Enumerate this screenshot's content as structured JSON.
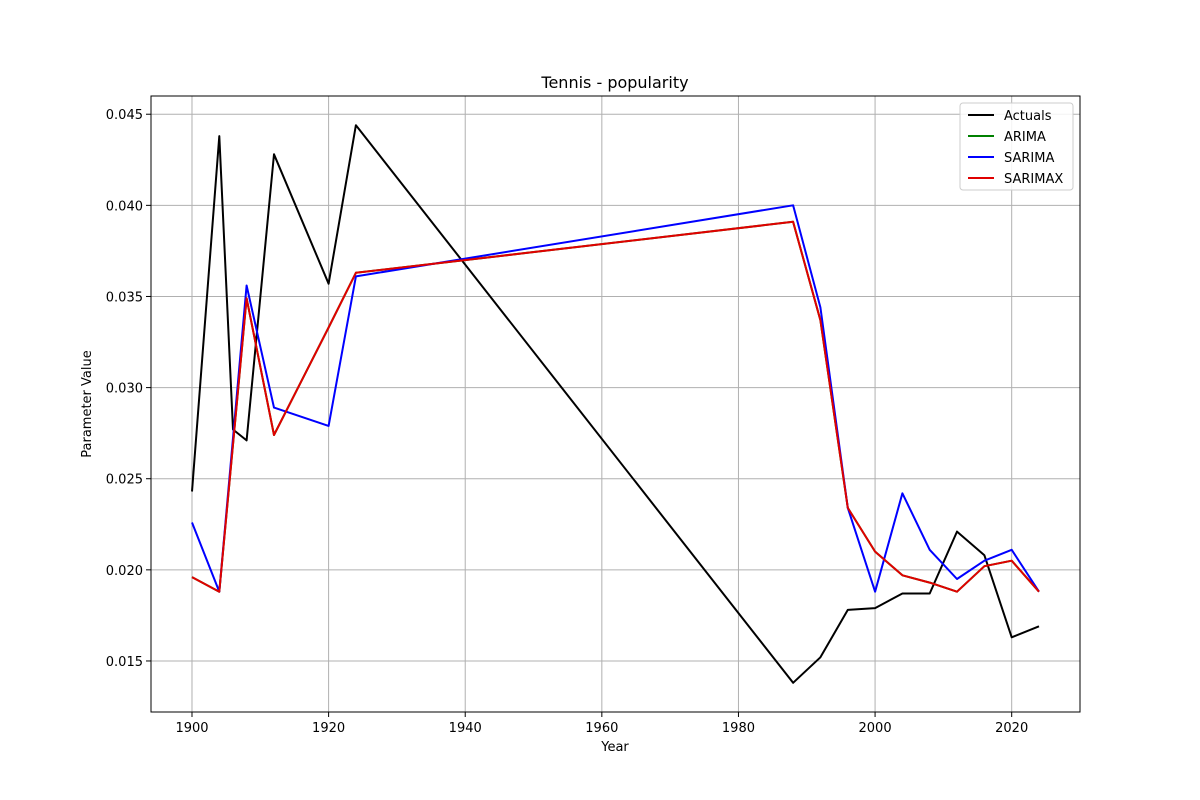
{
  "chart_data": {
    "type": "line",
    "title": "Tennis - popularity",
    "xlabel": "Year",
    "ylabel": "Parameter Value",
    "xlim": [
      1894,
      2030
    ],
    "ylim": [
      0.0122,
      0.046
    ],
    "xticks": [
      1900,
      1920,
      1940,
      1960,
      1980,
      2000,
      2020
    ],
    "yticks": [
      0.015,
      0.02,
      0.025,
      0.03,
      0.035,
      0.04,
      0.045
    ],
    "ytick_labels": [
      "0.015",
      "0.020",
      "0.025",
      "0.030",
      "0.035",
      "0.040",
      "0.045"
    ],
    "grid": true,
    "legend_position": "top-right",
    "series": [
      {
        "name": "Actuals",
        "color": "#000000",
        "x": [
          1900,
          1904,
          1906,
          1908,
          1912,
          1920,
          1924,
          1988,
          1992,
          1996,
          2000,
          2004,
          2008,
          2012,
          2016,
          2020,
          2024
        ],
        "y": [
          0.0243,
          0.0438,
          0.0277,
          0.0271,
          0.0428,
          0.0357,
          0.0444,
          0.0138,
          0.0152,
          0.0178,
          0.0179,
          0.0187,
          0.0187,
          0.0221,
          0.0208,
          0.0163,
          0.0169
        ]
      },
      {
        "name": "ARIMA",
        "color": "#008000",
        "x": [
          1900,
          1904,
          1908,
          1912,
          1920,
          1924,
          1988,
          1992,
          1996,
          2000,
          2004,
          2008,
          2012,
          2016,
          2020,
          2024
        ],
        "y": [
          0.0196,
          0.0188,
          0.0349,
          0.0274,
          0.0333,
          0.0363,
          0.0391,
          0.0337,
          0.0234,
          0.021,
          0.0197,
          0.0193,
          0.0188,
          0.0202,
          0.0205,
          0.0188
        ]
      },
      {
        "name": "SARIMA",
        "color": "#0000ff",
        "x": [
          1900,
          1904,
          1908,
          1912,
          1920,
          1924,
          1988,
          1992,
          1996,
          2000,
          2004,
          2008,
          2012,
          2016,
          2020,
          2024
        ],
        "y": [
          0.0226,
          0.0188,
          0.0356,
          0.0289,
          0.0279,
          0.0361,
          0.04,
          0.0344,
          0.0234,
          0.0188,
          0.0242,
          0.0211,
          0.0195,
          0.0205,
          0.0211,
          0.0188
        ]
      },
      {
        "name": "SARIMAX",
        "color": "#e00000",
        "x": [
          1900,
          1904,
          1908,
          1912,
          1920,
          1924,
          1988,
          1992,
          1996,
          2000,
          2004,
          2008,
          2012,
          2016,
          2020,
          2024
        ],
        "y": [
          0.0196,
          0.0188,
          0.0349,
          0.0274,
          0.0333,
          0.0363,
          0.0391,
          0.0337,
          0.0234,
          0.021,
          0.0197,
          0.0193,
          0.0188,
          0.0202,
          0.0205,
          0.0188
        ]
      }
    ]
  }
}
